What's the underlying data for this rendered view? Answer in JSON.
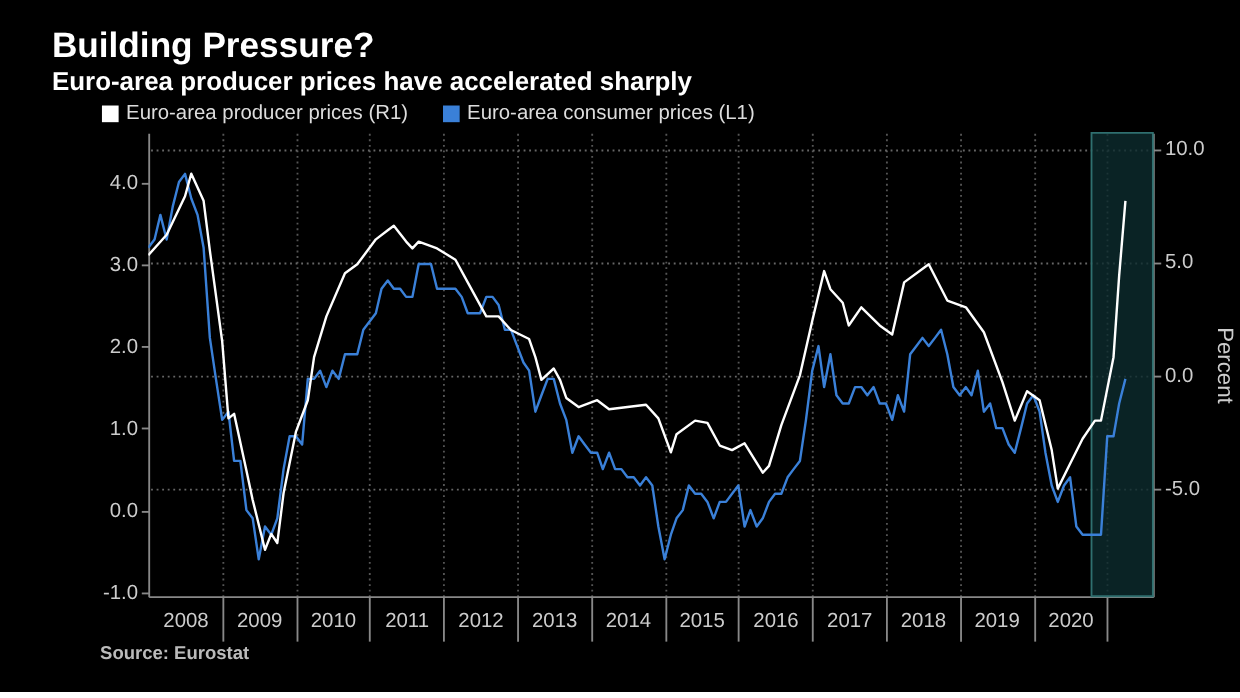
{
  "chart_data": {
    "type": "line",
    "title": "Building Pressure?",
    "subtitle": "Euro-area producer prices have accelerated sharply",
    "y2label": "Percent",
    "annotations": [
      "Source: Eurostat"
    ],
    "legend": "top left",
    "grid": true,
    "xlim": [
      "2008-01-01",
      "2021-08-15"
    ],
    "xticks": [
      {
        "value": "2008-07-01",
        "label": "2008"
      },
      {
        "value": "2009-01-01",
        "label": null
      },
      {
        "value": "2009-07-01",
        "label": "2009"
      },
      {
        "value": "2010-01-01",
        "label": null
      },
      {
        "value": "2010-07-01",
        "label": "2010"
      },
      {
        "value": "2011-01-01",
        "label": null
      },
      {
        "value": "2011-07-01",
        "label": "2011"
      },
      {
        "value": "2012-01-01",
        "label": null
      },
      {
        "value": "2012-07-01",
        "label": "2012"
      },
      {
        "value": "2013-01-01",
        "label": null
      },
      {
        "value": "2013-07-01",
        "label": "2013"
      },
      {
        "value": "2014-01-01",
        "label": null
      },
      {
        "value": "2014-07-01",
        "label": "2014"
      },
      {
        "value": "2015-01-01",
        "label": null
      },
      {
        "value": "2015-07-01",
        "label": "2015"
      },
      {
        "value": "2016-01-01",
        "label": null
      },
      {
        "value": "2016-07-01",
        "label": "2016"
      },
      {
        "value": "2017-01-01",
        "label": null
      },
      {
        "value": "2017-07-01",
        "label": "2017"
      },
      {
        "value": "2018-01-01",
        "label": null
      },
      {
        "value": "2018-07-01",
        "label": "2018"
      },
      {
        "value": "2019-01-01",
        "label": null
      },
      {
        "value": "2019-07-01",
        "label": "2019"
      },
      {
        "value": "2020-01-01",
        "label": null
      },
      {
        "value": "2020-07-01",
        "label": "2020"
      },
      {
        "value": "2021-01-01",
        "label": null
      }
    ],
    "ylim": [
      -1.05,
      4.6
    ],
    "yticks": [
      {
        "value": -1,
        "label": "-1.0"
      },
      {
        "value": 0,
        "label": "0.0"
      },
      {
        "value": 1,
        "label": "1.0"
      },
      {
        "value": 2,
        "label": "2.0"
      },
      {
        "value": 3,
        "label": "3.0"
      },
      {
        "value": 4,
        "label": "4.0"
      }
    ],
    "y2lim": [
      -9.75,
      10.7
    ],
    "y2ticks": [
      {
        "value": -5,
        "label": "-5.0"
      },
      {
        "value": 0,
        "label": "0.0"
      },
      {
        "value": 5,
        "label": "5.0"
      },
      {
        "value": 10,
        "label": "10.0"
      }
    ],
    "bands": [
      {
        "axis": "x",
        "from": "2020-10-15",
        "to": "2021-08-15",
        "color": "#0c2c2e"
      }
    ],
    "series": [
      {
        "name": "Euro-area producer prices (R1)",
        "color": "#ffffff",
        "axis": "y2",
        "x": [
          "2008-01",
          "2008-04",
          "2008-07",
          "2008-08",
          "2008-10",
          "2008-11",
          "2009-01",
          "2009-02",
          "2009-03",
          "2009-05",
          "2009-06",
          "2009-08",
          "2009-09",
          "2009-10",
          "2009-11",
          "2010-01",
          "2010-03",
          "2010-04",
          "2010-06",
          "2010-09",
          "2010-11",
          "2011-02",
          "2011-04",
          "2011-05",
          "2011-07",
          "2011-08",
          "2011-09",
          "2011-12",
          "2012-03",
          "2012-05",
          "2012-08",
          "2012-10",
          "2012-12",
          "2013-03",
          "2013-04",
          "2013-05",
          "2013-07",
          "2013-08",
          "2013-09",
          "2013-11",
          "2014-02",
          "2014-04",
          "2014-07",
          "2014-10",
          "2014-12",
          "2015-02",
          "2015-03",
          "2015-06",
          "2015-08",
          "2015-10",
          "2015-12",
          "2016-02",
          "2016-05",
          "2016-06",
          "2016-08",
          "2016-11",
          "2017-01",
          "2017-03",
          "2017-04",
          "2017-06",
          "2017-07",
          "2017-09",
          "2017-12",
          "2018-02",
          "2018-04",
          "2018-08",
          "2018-11",
          "2019-02",
          "2019-05",
          "2019-08",
          "2019-10",
          "2019-12",
          "2020-02",
          "2020-04",
          "2020-05",
          "2020-07",
          "2020-09",
          "2020-11",
          "2020-12",
          "2021-02",
          "2021-03",
          "2021-04"
        ],
        "values": [
          5.3,
          6.2,
          7.9,
          8.9,
          7.7,
          5.5,
          1.5,
          -1.9,
          -1.7,
          -4.2,
          -5.5,
          -7.7,
          -7.0,
          -7.4,
          -5.2,
          -2.5,
          -1.1,
          0.8,
          2.6,
          4.5,
          4.9,
          6.0,
          6.4,
          6.6,
          5.9,
          5.6,
          5.9,
          5.6,
          5.1,
          4.1,
          2.6,
          2.6,
          2.0,
          1.6,
          0.8,
          -0.2,
          0.3,
          -0.2,
          -1.0,
          -1.4,
          -1.1,
          -1.5,
          -1.4,
          -1.3,
          -1.9,
          -3.4,
          -2.6,
          -2.0,
          -2.1,
          -3.1,
          -3.3,
          -3.0,
          -4.3,
          -4.0,
          -2.2,
          0.0,
          2.4,
          4.6,
          3.8,
          3.2,
          2.2,
          3.0,
          2.2,
          1.8,
          4.1,
          4.9,
          3.3,
          3.0,
          1.9,
          -0.3,
          -2.0,
          -0.7,
          -1.1,
          -3.3,
          -5.0,
          -3.9,
          -2.8,
          -2.0,
          -2.0,
          0.8,
          4.4,
          7.7
        ]
      },
      {
        "name": "Euro-area consumer prices  (L1)",
        "color": "#3a80d8",
        "x": [
          "2008-01",
          "2008-02",
          "2008-03",
          "2008-04",
          "2008-05",
          "2008-06",
          "2008-07",
          "2008-08",
          "2008-09",
          "2008-10",
          "2008-11",
          "2008-12",
          "2009-01",
          "2009-02",
          "2009-03",
          "2009-04",
          "2009-05",
          "2009-06",
          "2009-07",
          "2009-08",
          "2009-09",
          "2009-10",
          "2009-11",
          "2009-12",
          "2010-01",
          "2010-02",
          "2010-03",
          "2010-04",
          "2010-05",
          "2010-06",
          "2010-07",
          "2010-08",
          "2010-09",
          "2010-10",
          "2010-11",
          "2010-12",
          "2011-01",
          "2011-02",
          "2011-03",
          "2011-04",
          "2011-05",
          "2011-06",
          "2011-07",
          "2011-08",
          "2011-09",
          "2011-10",
          "2011-11",
          "2011-12",
          "2012-01",
          "2012-02",
          "2012-03",
          "2012-04",
          "2012-05",
          "2012-06",
          "2012-07",
          "2012-08",
          "2012-09",
          "2012-10",
          "2012-11",
          "2012-12",
          "2013-01",
          "2013-02",
          "2013-03",
          "2013-04",
          "2013-05",
          "2013-06",
          "2013-07",
          "2013-08",
          "2013-09",
          "2013-10",
          "2013-11",
          "2013-12",
          "2014-01",
          "2014-02",
          "2014-03",
          "2014-04",
          "2014-05",
          "2014-06",
          "2014-07",
          "2014-08",
          "2014-09",
          "2014-10",
          "2014-11",
          "2014-12",
          "2015-01",
          "2015-02",
          "2015-03",
          "2015-04",
          "2015-05",
          "2015-06",
          "2015-07",
          "2015-08",
          "2015-09",
          "2015-10",
          "2015-11",
          "2015-12",
          "2016-01",
          "2016-02",
          "2016-03",
          "2016-04",
          "2016-05",
          "2016-06",
          "2016-07",
          "2016-08",
          "2016-09",
          "2016-10",
          "2016-11",
          "2016-12",
          "2017-01",
          "2017-02",
          "2017-03",
          "2017-04",
          "2017-05",
          "2017-06",
          "2017-07",
          "2017-08",
          "2017-09",
          "2017-10",
          "2017-11",
          "2017-12",
          "2018-01",
          "2018-02",
          "2018-03",
          "2018-04",
          "2018-05",
          "2018-06",
          "2018-07",
          "2018-08",
          "2018-09",
          "2018-10",
          "2018-11",
          "2018-12",
          "2019-01",
          "2019-02",
          "2019-03",
          "2019-04",
          "2019-05",
          "2019-06",
          "2019-07",
          "2019-08",
          "2019-09",
          "2019-10",
          "2019-11",
          "2019-12",
          "2020-01",
          "2020-02",
          "2020-03",
          "2020-04",
          "2020-05",
          "2020-06",
          "2020-07",
          "2020-08",
          "2020-09",
          "2020-10",
          "2020-11",
          "2020-12",
          "2021-01",
          "2021-02",
          "2021-03",
          "2021-04"
        ],
        "values": [
          3.2,
          3.3,
          3.6,
          3.3,
          3.7,
          4.0,
          4.1,
          3.8,
          3.6,
          3.2,
          2.1,
          1.6,
          1.1,
          1.2,
          0.6,
          0.6,
          0.0,
          -0.1,
          -0.6,
          -0.2,
          -0.3,
          -0.1,
          0.5,
          0.9,
          0.9,
          0.8,
          1.6,
          1.6,
          1.7,
          1.5,
          1.7,
          1.6,
          1.9,
          1.9,
          1.9,
          2.2,
          2.3,
          2.4,
          2.7,
          2.8,
          2.7,
          2.7,
          2.6,
          2.6,
          3.0,
          3.0,
          3.0,
          2.7,
          2.7,
          2.7,
          2.7,
          2.6,
          2.4,
          2.4,
          2.4,
          2.6,
          2.6,
          2.5,
          2.2,
          2.2,
          2.0,
          1.8,
          1.7,
          1.2,
          1.4,
          1.6,
          1.6,
          1.3,
          1.1,
          0.7,
          0.9,
          0.8,
          0.7,
          0.7,
          0.5,
          0.7,
          0.5,
          0.5,
          0.4,
          0.4,
          0.3,
          0.4,
          0.3,
          -0.2,
          -0.6,
          -0.3,
          -0.1,
          0.0,
          0.3,
          0.2,
          0.2,
          0.1,
          -0.1,
          0.1,
          0.1,
          0.2,
          0.3,
          -0.2,
          0.0,
          -0.2,
          -0.1,
          0.1,
          0.2,
          0.2,
          0.4,
          0.5,
          0.6,
          1.1,
          1.7,
          2.0,
          1.5,
          1.9,
          1.4,
          1.3,
          1.3,
          1.5,
          1.5,
          1.4,
          1.5,
          1.3,
          1.3,
          1.1,
          1.4,
          1.2,
          1.9,
          2.0,
          2.1,
          2.0,
          2.1,
          2.2,
          1.9,
          1.5,
          1.4,
          1.5,
          1.4,
          1.7,
          1.2,
          1.3,
          1.0,
          1.0,
          0.8,
          0.7,
          1.0,
          1.3,
          1.4,
          1.2,
          0.7,
          0.3,
          0.1,
          0.3,
          0.4,
          -0.2,
          -0.3,
          -0.3,
          -0.3,
          -0.3,
          0.9,
          0.9,
          1.3,
          1.6
        ]
      }
    ]
  }
}
